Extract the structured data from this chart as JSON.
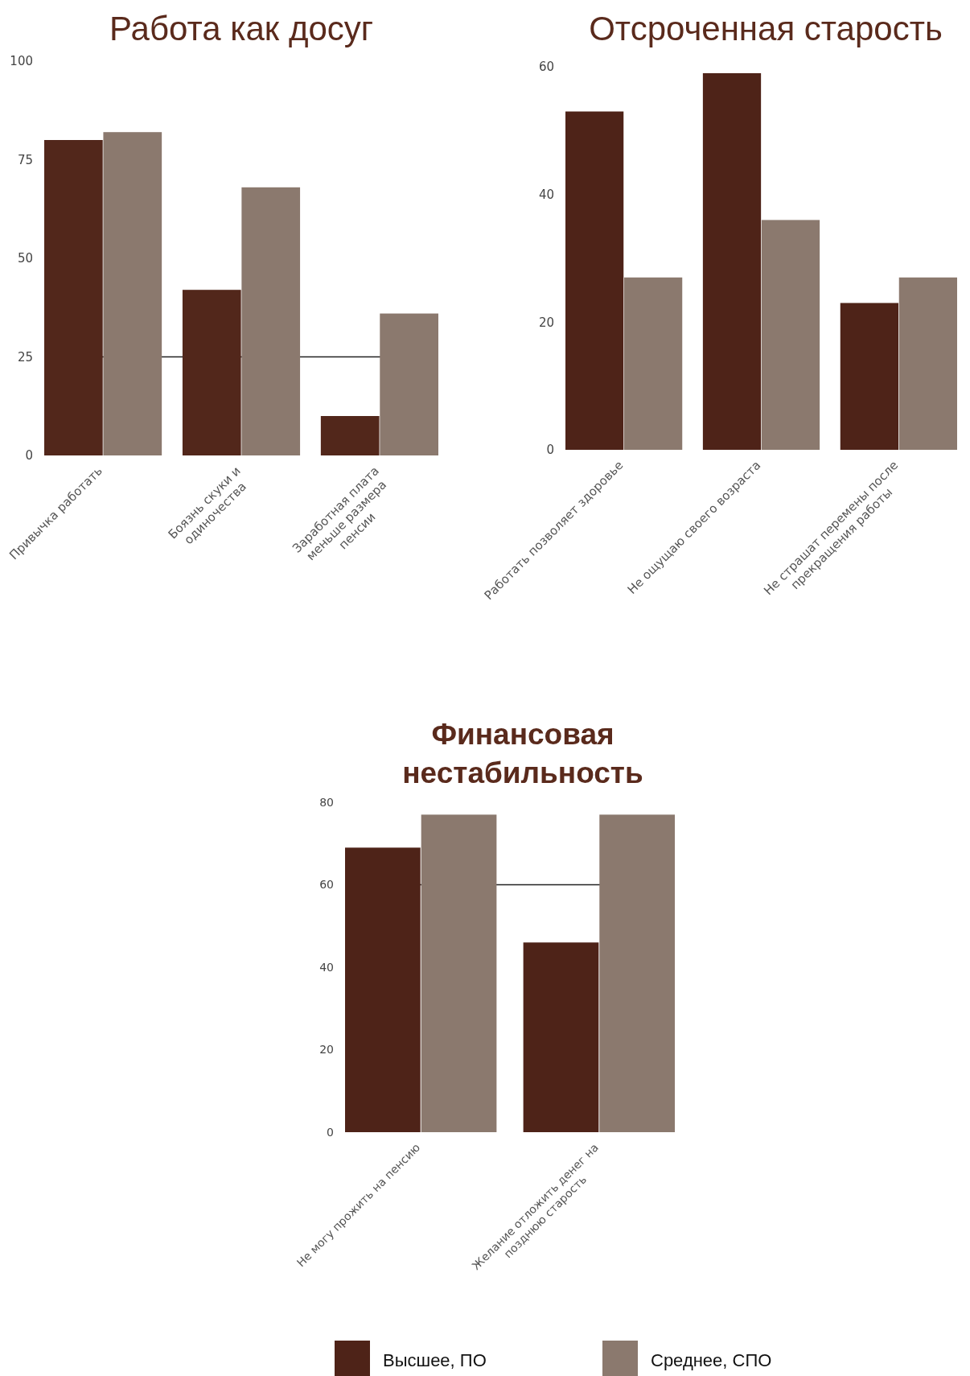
{
  "chart_data": [
    {
      "type": "bar",
      "title": "Работа как досуг",
      "categories": [
        "Привычка работать",
        "Боязнь скуки и одиночества",
        "Заработная плата меньше размера пенсии"
      ],
      "series": [
        {
          "color": "#52271b",
          "values": [
            80,
            42,
            10
          ]
        },
        {
          "color": "#8b796e",
          "values": [
            82,
            68,
            36
          ]
        }
      ],
      "ylim": [
        0,
        100
      ],
      "yticks": [
        0,
        25,
        50,
        75,
        100
      ],
      "ref_lines": [
        {
          "axis": "y",
          "value": 25,
          "color": "#222222"
        }
      ]
    },
    {
      "type": "bar",
      "title": "Отсроченная старость",
      "categories": [
        "Работать позволяет здоровье",
        "Не ощущаю своего возраста",
        "Не страшат перемены после прекращения работы"
      ],
      "series": [
        {
          "color": "#4e2318",
          "values": [
            53,
            59,
            23
          ]
        },
        {
          "color": "#8b796e",
          "values": [
            27,
            36,
            27
          ]
        }
      ],
      "ylim": [
        0,
        60
      ],
      "yticks": [
        0,
        20,
        40,
        60
      ]
    },
    {
      "type": "bar",
      "title": "Финансовая нестабильность",
      "categories": [
        "Не могу прожить на пенсию",
        "Желание отложить денег на позднюю старость"
      ],
      "series": [
        {
          "name": "Высшее, ПО",
          "color": "#4e2318",
          "values": [
            69,
            46
          ]
        },
        {
          "name": "Среднее, СПО",
          "color": "#8b796e",
          "values": [
            77,
            77
          ]
        }
      ],
      "ylim": [
        0,
        80
      ],
      "yticks": [
        0,
        20,
        40,
        60,
        80
      ],
      "ref_lines": [
        {
          "axis": "y",
          "value": 60,
          "color": "#222222"
        }
      ],
      "legend": "bottom"
    }
  ]
}
